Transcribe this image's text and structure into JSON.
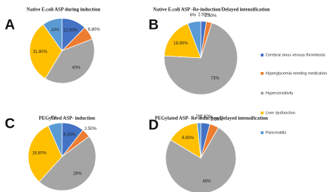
{
  "legend": {
    "labels": [
      "Cerebral sinus venous thrombosis",
      "Hyperglycemia needing medication",
      "Hypersensitivity",
      "Liver dysfunction",
      "Pancreatitis"
    ],
    "colors": [
      "#4472c4",
      "#ed7d31",
      "#a5a5a5",
      "#ffc000",
      "#5b9bd5"
    ]
  },
  "chart_data": [
    {
      "type": "pie",
      "panel": "A",
      "title": "Native E.coli ASP during  induction",
      "values": [
        12.5,
        6.8,
        40,
        31.8,
        10
      ],
      "value_labels": [
        "12.50%",
        "6.80%",
        "40%",
        "31.80%",
        "10%"
      ]
    },
    {
      "type": "pie",
      "panel": "B",
      "title": "Native E.coli ASP -Re-induction/Delayed  intensification",
      "values": [
        2.5,
        2.5,
        73,
        18.8,
        6
      ],
      "value_labels": [
        "2.50%",
        "2.50%",
        "73%",
        "18.80%",
        "6%"
      ]
    },
    {
      "type": "pie",
      "panel": "C",
      "title": "PEGylated ASP- induction",
      "values": [
        6.3,
        2.5,
        28,
        18.8,
        4
      ],
      "value_labels": [
        "6.30%",
        "2.50%",
        "28%",
        "18.80%",
        "4%"
      ]
    },
    {
      "type": "pie",
      "panel": "D",
      "title": "PEGylated ASP- Re-induction/Delayed intensification",
      "values": [
        2.5,
        2.5,
        45,
        8.8,
        1
      ],
      "value_labels": [
        "2.50%",
        "2.50%",
        "45%",
        "8.80%",
        "1%"
      ]
    }
  ]
}
